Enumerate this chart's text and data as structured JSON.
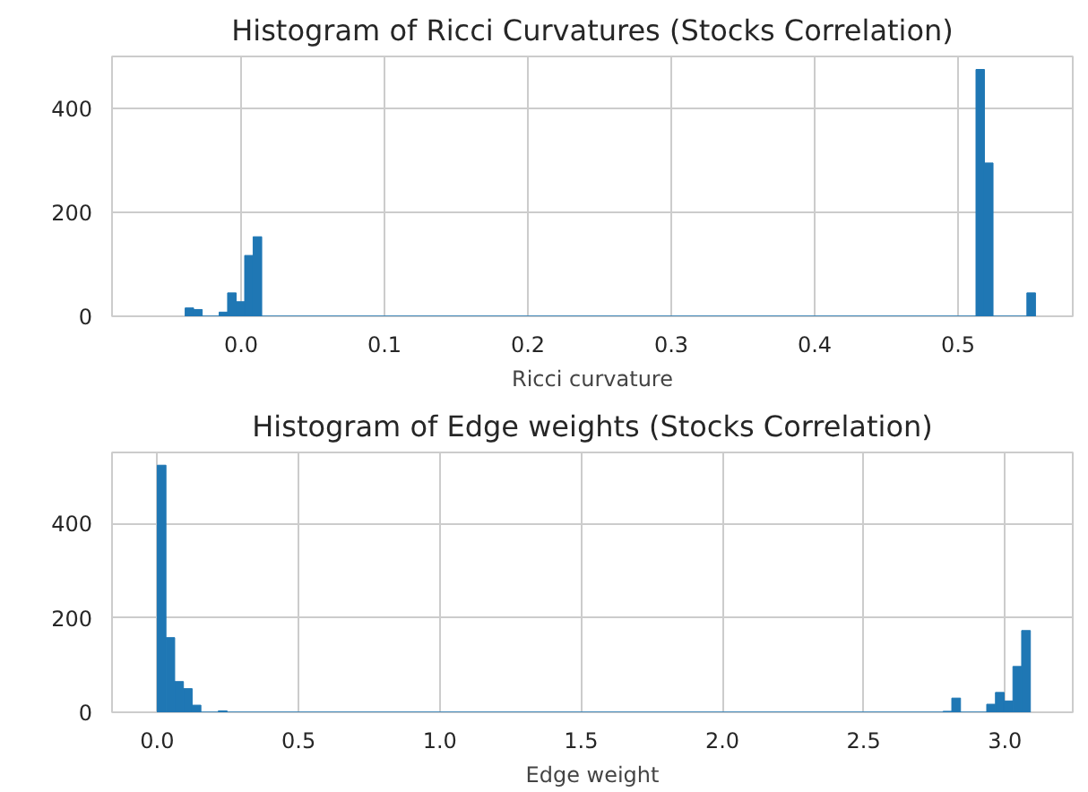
{
  "chart_data": [
    {
      "type": "histogram",
      "title": "Histogram of Ricci Curvatures (Stocks Correlation)",
      "xlabel": "Ricci curvature",
      "color": "#1f77b4",
      "bins": [
        -0.039,
        -0.0331,
        -0.0271,
        -0.0153,
        -0.0094,
        -0.0034,
        0.0025,
        0.0084,
        0.0144,
        0.5125,
        0.5184,
        0.5244,
        0.548,
        0.554
      ],
      "values": [
        16,
        13,
        0,
        8,
        45,
        28,
        117,
        153,
        0,
        475,
        295,
        0,
        45
      ],
      "xlim": [
        -0.09,
        0.58
      ],
      "ylim": [
        0,
        500
      ],
      "xticks": [
        {
          "value": 0,
          "label": "0.0"
        },
        0.1,
        0.2,
        0.3,
        0.4,
        0.5
      ],
      "yticks": [
        0,
        200,
        400
      ],
      "grid": true
    },
    {
      "type": "histogram",
      "title": "Histogram of Edge weights (Stocks Correlation)",
      "xlabel": "Edge weight",
      "color": "#1f77b4",
      "bins": [
        0,
        0.0309,
        0.0618,
        0.0927,
        0.1236,
        0.1545,
        0.2163,
        0.2472,
        2.781,
        2.8119,
        2.8428,
        2.9355,
        2.9664,
        2.9973,
        3.0282,
        3.0591,
        3.09
      ],
      "values": [
        523,
        158,
        65,
        50,
        15,
        0,
        3,
        0,
        2,
        30,
        0,
        17,
        42,
        24,
        97,
        173
      ],
      "xlim": [
        -0.16,
        3.24
      ],
      "ylim": [
        0,
        550
      ],
      "xticks": [
        {
          "value": 0,
          "label": "0.0"
        },
        0.5,
        {
          "value": 1,
          "label": "1.0"
        },
        1.5,
        {
          "value": 2,
          "label": "2.0"
        },
        2.5,
        {
          "value": 3,
          "label": "3.0"
        }
      ],
      "yticks": [
        0,
        200,
        400
      ],
      "grid": true
    }
  ]
}
